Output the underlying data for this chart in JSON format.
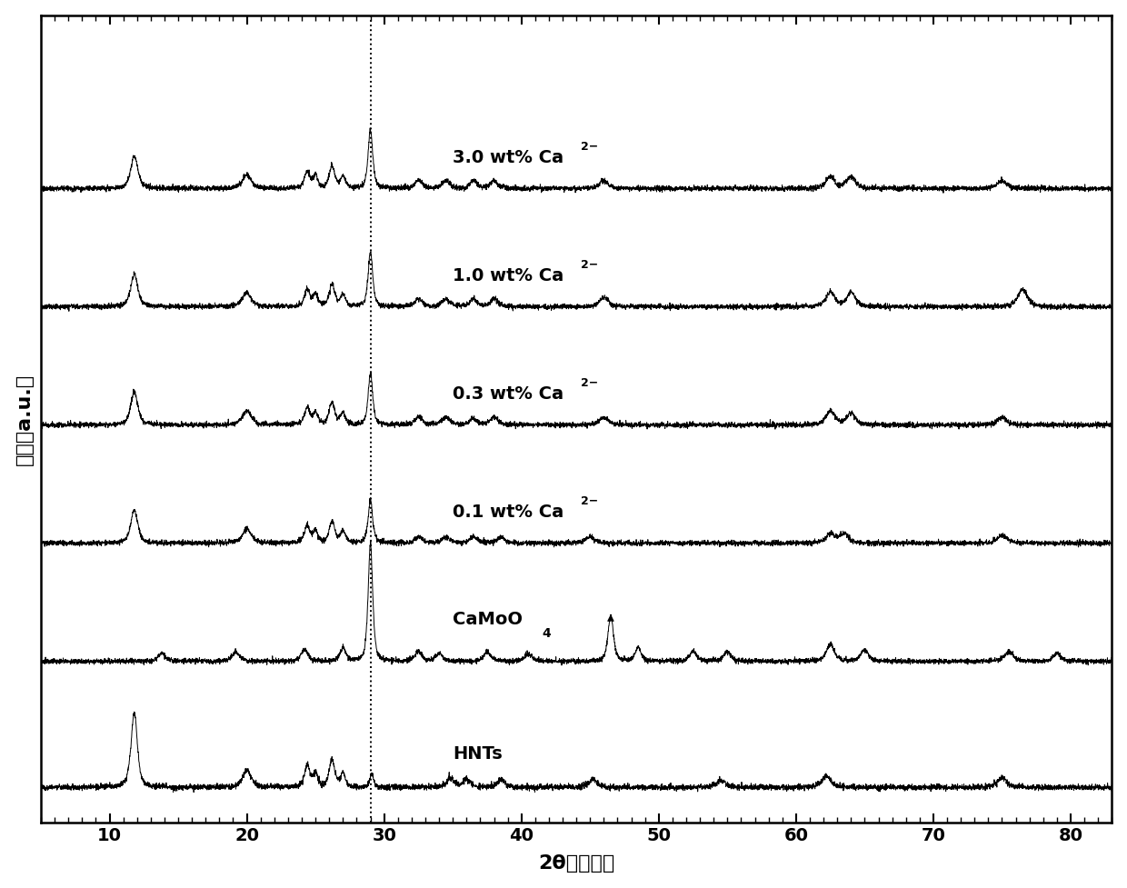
{
  "xlabel": "2θ（角度）",
  "ylabel": "强度（a.u.）",
  "xlim": [
    5,
    83
  ],
  "xticks": [
    10,
    20,
    30,
    40,
    50,
    60,
    70,
    80
  ],
  "dashed_line_x": 29.0,
  "background_color": "#ffffff",
  "line_color": "#000000",
  "offsets": [
    0.0,
    1.6,
    3.1,
    4.6,
    6.1,
    7.6
  ],
  "figsize": [
    12.4,
    9.77
  ],
  "dpi": 100,
  "linewidth": 0.7
}
